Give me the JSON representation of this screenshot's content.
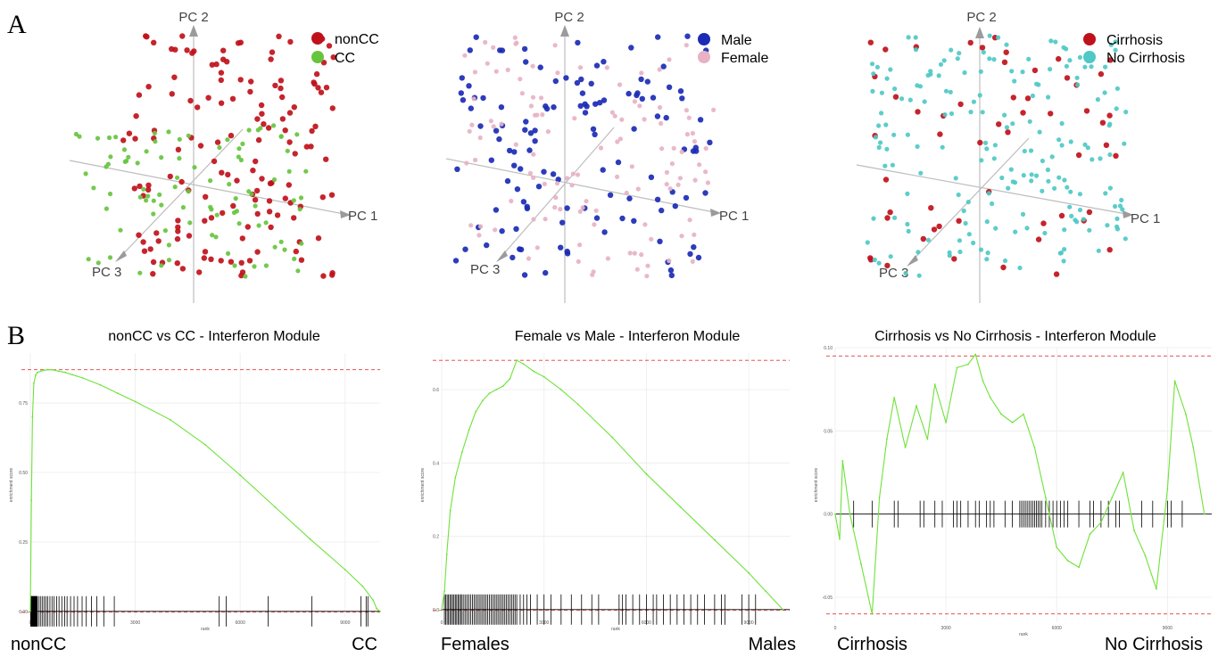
{
  "panel_labels": [
    "A",
    "B"
  ],
  "pca_axis_names": {
    "pc1": "PC 1",
    "pc2": "PC 2",
    "pc3": "PC 3"
  },
  "colors": {
    "nonCC": "#c0111b",
    "CC": "#67c43f",
    "Male": "#1b2bb5",
    "Female": "#e7b2c4",
    "Cirrhosis": "#c0111b",
    "NoCirrhosis": "#4fc9c5",
    "es_line": "#6fe23a",
    "max_line": "#e33a3a",
    "hits": "#000000"
  },
  "chart_data": [
    {
      "type": "scatter",
      "panel": "A",
      "kind": "3d-pca",
      "axes": [
        "PC 1",
        "PC 2",
        "PC 3"
      ],
      "legend_position": "top-right",
      "legend": [
        {
          "label": "nonCC",
          "color": "#c0111b"
        },
        {
          "label": "CC",
          "color": "#67c43f"
        }
      ],
      "series": [
        {
          "name": "nonCC",
          "n_points": 150
        },
        {
          "name": "CC",
          "n_points": 95
        }
      ]
    },
    {
      "type": "scatter",
      "panel": "A",
      "kind": "3d-pca",
      "axes": [
        "PC 1",
        "PC 2",
        "PC 3"
      ],
      "legend_position": "top-right",
      "legend": [
        {
          "label": "Male",
          "color": "#1b2bb5"
        },
        {
          "label": "Female",
          "color": "#e7b2c4"
        }
      ],
      "series": [
        {
          "name": "Male",
          "n_points": 125
        },
        {
          "name": "Female",
          "n_points": 120
        }
      ]
    },
    {
      "type": "scatter",
      "panel": "A",
      "kind": "3d-pca",
      "axes": [
        "PC 1",
        "PC 2",
        "PC 3"
      ],
      "legend_position": "top-right",
      "legend": [
        {
          "label": "Cirrhosis",
          "color": "#c0111b"
        },
        {
          "label": "No Cirrhosis",
          "color": "#4fc9c5"
        }
      ],
      "series": [
        {
          "name": "Cirrhosis",
          "n_points": 55
        },
        {
          "name": "No Cirrhosis",
          "n_points": 190
        }
      ]
    },
    {
      "type": "line",
      "panel": "B",
      "title": "nonCC vs CC - Interferon Module",
      "xlabel": "rank",
      "ylabel": "enrichment score",
      "xlim": [
        0,
        10000
      ],
      "ylim": [
        -0.02,
        0.93
      ],
      "xticks": [
        0,
        3000,
        6000,
        9000
      ],
      "yticks": [
        0.0,
        0.25,
        0.5,
        0.75
      ],
      "ytick_labels": [
        "0.00",
        "0.25",
        "0.50",
        "0.75"
      ],
      "max_es": 0.87,
      "corner_labels": [
        "nonCC",
        "CC"
      ],
      "x": [
        0,
        30,
        60,
        100,
        150,
        200,
        300,
        400,
        500,
        600,
        700,
        800,
        1000,
        1200,
        1500,
        2000,
        2500,
        3000,
        4000,
        5000,
        6000,
        7000,
        8000,
        9000,
        9500,
        9800,
        9900,
        10000
      ],
      "y": [
        0.0,
        0.4,
        0.7,
        0.82,
        0.85,
        0.86,
        0.865,
        0.868,
        0.87,
        0.87,
        0.868,
        0.865,
        0.86,
        0.852,
        0.84,
        0.815,
        0.785,
        0.755,
        0.69,
        0.6,
        0.49,
        0.375,
        0.26,
        0.15,
        0.09,
        0.04,
        0.01,
        0.0
      ],
      "hits": [
        10,
        20,
        30,
        40,
        50,
        60,
        70,
        80,
        90,
        100,
        110,
        120,
        130,
        140,
        150,
        160,
        170,
        180,
        190,
        200,
        250,
        300,
        350,
        400,
        450,
        500,
        560,
        620,
        680,
        750,
        820,
        900,
        980,
        1050,
        1150,
        1250,
        1350,
        1480,
        1600,
        1750,
        1900,
        2100,
        2400,
        5400,
        5600,
        6800,
        8050,
        9450,
        9600,
        9650
      ]
    },
    {
      "type": "line",
      "panel": "B",
      "title": "Female vs Male - Interferon Module",
      "xlabel": "rank",
      "ylabel": "enrichment score",
      "xlim": [
        0,
        10200
      ],
      "ylim": [
        -0.02,
        0.7
      ],
      "xticks": [
        0,
        3000,
        6000,
        9000
      ],
      "yticks": [
        0.0,
        0.2,
        0.4,
        0.6
      ],
      "ytick_labels": [
        "0.0",
        "0.2",
        "0.4",
        "0.6"
      ],
      "max_es": 0.68,
      "corner_labels": [
        "Females",
        "Males"
      ],
      "x": [
        0,
        80,
        150,
        250,
        400,
        600,
        800,
        1000,
        1200,
        1400,
        1600,
        1800,
        2000,
        2200,
        2400,
        2700,
        3000,
        3500,
        4000,
        5000,
        6000,
        7000,
        8000,
        9000,
        9500,
        10000
      ],
      "y": [
        0.0,
        0.05,
        0.15,
        0.27,
        0.36,
        0.43,
        0.49,
        0.54,
        0.57,
        0.59,
        0.6,
        0.61,
        0.63,
        0.68,
        0.67,
        0.65,
        0.635,
        0.6,
        0.56,
        0.47,
        0.37,
        0.28,
        0.19,
        0.1,
        0.05,
        0.0
      ],
      "hits": [
        80,
        120,
        160,
        200,
        240,
        280,
        320,
        360,
        400,
        440,
        480,
        520,
        560,
        600,
        650,
        700,
        750,
        800,
        850,
        900,
        950,
        1000,
        1050,
        1100,
        1150,
        1200,
        1250,
        1300,
        1350,
        1400,
        1450,
        1500,
        1550,
        1600,
        1650,
        1700,
        1750,
        1800,
        1850,
        1900,
        1950,
        2000,
        2050,
        2100,
        2150,
        2200,
        2300,
        2400,
        2500,
        2600,
        2800,
        3000,
        3200,
        3500,
        3800,
        4100,
        4400,
        4600,
        5200,
        5300,
        5400,
        5600,
        5800,
        6000,
        6200,
        6300,
        6500,
        6700,
        6900,
        7100,
        7300,
        7500,
        7700,
        8000,
        8200,
        8300,
        8800,
        9000,
        9200
      ]
    },
    {
      "type": "line",
      "panel": "B",
      "title": "Cirrhosis vs No Cirrhosis - Interferon Module",
      "xlabel": "rank",
      "ylabel": "enrichment score",
      "xlim": [
        0,
        10200
      ],
      "ylim": [
        -0.065,
        0.1
      ],
      "xticks": [
        0,
        3000,
        6000,
        9000
      ],
      "yticks": [
        -0.05,
        0.0,
        0.05,
        0.1
      ],
      "ytick_labels": [
        "-0.05",
        "0.00",
        "0.05",
        "0.10"
      ],
      "max_es": 0.095,
      "min_es": -0.06,
      "corner_labels": [
        "Cirrhosis",
        "No Cirrhosis"
      ],
      "x": [
        0,
        120,
        200,
        400,
        700,
        1000,
        1200,
        1400,
        1600,
        1900,
        2200,
        2500,
        2700,
        3000,
        3300,
        3600,
        3800,
        4000,
        4200,
        4500,
        4800,
        5100,
        5400,
        5700,
        6000,
        6300,
        6600,
        6900,
        7200,
        7500,
        7800,
        8100,
        8400,
        8700,
        9000,
        9200,
        9500,
        9700,
        10000
      ],
      "y": [
        0.0,
        -0.015,
        0.032,
        0.0,
        -0.03,
        -0.06,
        0.01,
        0.045,
        0.07,
        0.04,
        0.065,
        0.045,
        0.078,
        0.055,
        0.088,
        0.09,
        0.096,
        0.08,
        0.07,
        0.06,
        0.055,
        0.06,
        0.04,
        0.01,
        -0.02,
        -0.028,
        -0.032,
        -0.012,
        -0.005,
        0.01,
        0.025,
        -0.01,
        -0.025,
        -0.045,
        0.015,
        0.08,
        0.06,
        0.04,
        0.0
      ],
      "hits": [
        500,
        1000,
        1600,
        1700,
        2300,
        2400,
        2700,
        2900,
        3200,
        3300,
        3400,
        3600,
        3800,
        3900,
        4100,
        4200,
        4300,
        4600,
        4800,
        5000,
        5050,
        5100,
        5150,
        5200,
        5250,
        5300,
        5350,
        5400,
        5450,
        5500,
        5550,
        5600,
        5700,
        5800,
        5900,
        6000,
        6100,
        6200,
        6300,
        6600,
        6900,
        7000,
        7200,
        7400,
        7600,
        7700,
        8300,
        8600,
        9000,
        9100,
        9400
      ]
    }
  ]
}
